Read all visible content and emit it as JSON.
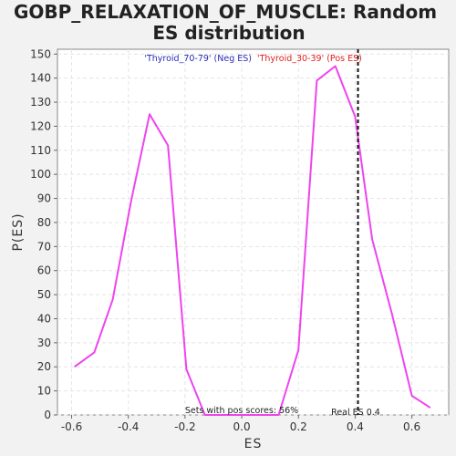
{
  "chart_data": {
    "type": "line",
    "title": "GOBP_RELAXATION_OF_MUSCLE: Random ES distribution",
    "title_lines": [
      "GOBP_RELAXATION_OF_MUSCLE: Random",
      "ES distribution"
    ],
    "xlabel": "ES",
    "ylabel": "P(ES)",
    "xlim": [
      -0.65,
      0.73
    ],
    "ylim": [
      0,
      152
    ],
    "xticks": [
      -0.6,
      -0.4,
      -0.2,
      0.0,
      0.2,
      0.4,
      0.6
    ],
    "xtick_labels": [
      "-0.6",
      "-0.4",
      "-0.2",
      "0.0",
      "0.2",
      "0.4",
      "0.6"
    ],
    "yticks": [
      0,
      10,
      20,
      30,
      40,
      50,
      60,
      70,
      80,
      90,
      100,
      110,
      120,
      130,
      140,
      150
    ],
    "ytick_labels": [
      "0",
      "10",
      "20",
      "30",
      "40",
      "50",
      "60",
      "70",
      "80",
      "90",
      "100",
      "110",
      "120",
      "130",
      "140",
      "150"
    ],
    "grid": true,
    "legend": [
      {
        "label": "'Thyroid_70-79' (Neg ES)",
        "color": "#2a2ab8"
      },
      {
        "label": "'Thyroid_30-39' (Pos ES)",
        "color": "#e02020"
      }
    ],
    "series": [
      {
        "color": "#ee44ee",
        "x": [
          -0.59,
          -0.52,
          -0.455,
          -0.39,
          -0.325,
          -0.26,
          -0.195,
          -0.13,
          -0.065,
          0.0,
          0.065,
          0.13,
          0.2,
          0.265,
          0.33,
          0.4,
          0.46,
          0.53,
          0.6,
          0.665
        ],
        "y": [
          20,
          26,
          48,
          89,
          125,
          112,
          19,
          0,
          0,
          0,
          0,
          0,
          27,
          139,
          145,
          124,
          73,
          42,
          8,
          3
        ]
      }
    ],
    "real_es": 0.41,
    "annotations": {
      "pos_scores": "Sets with pos scores: 56%",
      "real_es": "Real ES 0.4"
    }
  }
}
